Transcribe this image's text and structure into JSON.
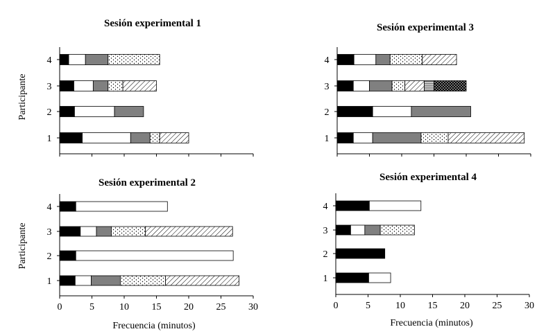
{
  "figure": {
    "ylabel": "Participante",
    "xlabel": "Frecuencia (minutos)"
  },
  "chart_data": [
    {
      "type": "bar",
      "orientation": "horizontal",
      "stacked": true,
      "title": "Sesión experimental 1",
      "ylabel": "Participante",
      "categories": [
        "1",
        "2",
        "3",
        "4"
      ],
      "xlim": [
        0,
        30
      ],
      "x_tick_labels": [],
      "stacks": [
        {
          "participant": "1",
          "segments": [
            {
              "value": 3.5,
              "pattern": "solid-black"
            },
            {
              "value": 7.5,
              "pattern": "white"
            },
            {
              "value": 3.0,
              "pattern": "gray"
            },
            {
              "value": 1.5,
              "pattern": "dots"
            },
            {
              "value": 4.5,
              "pattern": "diagonal"
            }
          ]
        },
        {
          "participant": "2",
          "segments": [
            {
              "value": 2.3,
              "pattern": "solid-black"
            },
            {
              "value": 6.2,
              "pattern": "white"
            },
            {
              "value": 4.5,
              "pattern": "gray"
            }
          ]
        },
        {
          "participant": "3",
          "segments": [
            {
              "value": 2.2,
              "pattern": "solid-black"
            },
            {
              "value": 3.0,
              "pattern": "white"
            },
            {
              "value": 2.3,
              "pattern": "gray"
            },
            {
              "value": 2.3,
              "pattern": "dots"
            },
            {
              "value": 5.2,
              "pattern": "diagonal"
            }
          ]
        },
        {
          "participant": "4",
          "segments": [
            {
              "value": 1.4,
              "pattern": "solid-black"
            },
            {
              "value": 2.6,
              "pattern": "white"
            },
            {
              "value": 3.5,
              "pattern": "gray"
            },
            {
              "value": 8.0,
              "pattern": "dots"
            }
          ]
        }
      ]
    },
    {
      "type": "bar",
      "orientation": "horizontal",
      "stacked": true,
      "title": "Sesión experimental 3",
      "categories": [
        "1",
        "2",
        "3",
        "4"
      ],
      "xlim": [
        0,
        30
      ],
      "x_tick_labels": [],
      "stacks": [
        {
          "participant": "1",
          "segments": [
            {
              "value": 2.5,
              "pattern": "solid-black"
            },
            {
              "value": 3.0,
              "pattern": "white"
            },
            {
              "value": 7.5,
              "pattern": "gray"
            },
            {
              "value": 4.2,
              "pattern": "dots"
            },
            {
              "value": 11.8,
              "pattern": "diagonal"
            }
          ]
        },
        {
          "participant": "2",
          "segments": [
            {
              "value": 5.5,
              "pattern": "solid-black"
            },
            {
              "value": 6.0,
              "pattern": "white"
            },
            {
              "value": 9.2,
              "pattern": "gray"
            }
          ]
        },
        {
          "participant": "3",
          "segments": [
            {
              "value": 2.5,
              "pattern": "solid-black"
            },
            {
              "value": 2.5,
              "pattern": "white"
            },
            {
              "value": 3.5,
              "pattern": "gray"
            },
            {
              "value": 2.0,
              "pattern": "dots"
            },
            {
              "value": 3.0,
              "pattern": "diagonal"
            },
            {
              "value": 1.5,
              "pattern": "horizontal-lines"
            },
            {
              "value": 5.0,
              "pattern": "dense-dots"
            }
          ]
        },
        {
          "participant": "4",
          "segments": [
            {
              "value": 2.6,
              "pattern": "solid-black"
            },
            {
              "value": 3.4,
              "pattern": "white"
            },
            {
              "value": 2.2,
              "pattern": "gray"
            },
            {
              "value": 5.0,
              "pattern": "dots"
            },
            {
              "value": 5.3,
              "pattern": "diagonal"
            }
          ]
        }
      ]
    },
    {
      "type": "bar",
      "orientation": "horizontal",
      "stacked": true,
      "title": "Sesión experimental 2",
      "ylabel": "Participante",
      "xlabel": "Frecuencia (minutos)",
      "categories": [
        "1",
        "2",
        "3",
        "4"
      ],
      "xlim": [
        0,
        30
      ],
      "x_ticks": [
        0,
        5,
        10,
        15,
        20,
        25,
        30
      ],
      "x_tick_labels": [
        "0",
        "5",
        "10",
        "15",
        "20",
        "25",
        "30"
      ],
      "stacks": [
        {
          "participant": "1",
          "segments": [
            {
              "value": 2.4,
              "pattern": "solid-black"
            },
            {
              "value": 2.5,
              "pattern": "white"
            },
            {
              "value": 4.5,
              "pattern": "gray"
            },
            {
              "value": 7.0,
              "pattern": "dots"
            },
            {
              "value": 11.4,
              "pattern": "diagonal"
            }
          ]
        },
        {
          "participant": "2",
          "segments": [
            {
              "value": 2.5,
              "pattern": "solid-black"
            },
            {
              "value": 24.4,
              "pattern": "white"
            }
          ]
        },
        {
          "participant": "3",
          "segments": [
            {
              "value": 3.2,
              "pattern": "solid-black"
            },
            {
              "value": 2.5,
              "pattern": "white"
            },
            {
              "value": 2.3,
              "pattern": "gray"
            },
            {
              "value": 5.3,
              "pattern": "dots"
            },
            {
              "value": 13.5,
              "pattern": "diagonal"
            }
          ]
        },
        {
          "participant": "4",
          "segments": [
            {
              "value": 2.5,
              "pattern": "solid-black"
            },
            {
              "value": 14.2,
              "pattern": "white"
            }
          ]
        }
      ]
    },
    {
      "type": "bar",
      "orientation": "horizontal",
      "stacked": true,
      "title": "Sesión experimental 4",
      "xlabel": "Frecuencia (minutos)",
      "categories": [
        "1",
        "2",
        "3",
        "4"
      ],
      "xlim": [
        0,
        30
      ],
      "x_ticks": [
        0,
        5,
        10,
        15,
        20,
        25,
        30
      ],
      "x_tick_labels": [
        "0",
        "5",
        "10",
        "15",
        "20",
        "25",
        "30"
      ],
      "stacks": [
        {
          "participant": "1",
          "segments": [
            {
              "value": 5.1,
              "pattern": "solid-black"
            },
            {
              "value": 3.4,
              "pattern": "white"
            }
          ]
        },
        {
          "participant": "2",
          "segments": [
            {
              "value": 7.6,
              "pattern": "solid-black"
            }
          ]
        },
        {
          "participant": "3",
          "segments": [
            {
              "value": 2.3,
              "pattern": "solid-black"
            },
            {
              "value": 2.2,
              "pattern": "white"
            },
            {
              "value": 2.4,
              "pattern": "gray"
            },
            {
              "value": 5.3,
              "pattern": "dots"
            }
          ]
        },
        {
          "participant": "4",
          "segments": [
            {
              "value": 5.2,
              "pattern": "solid-black"
            },
            {
              "value": 8.0,
              "pattern": "white"
            }
          ]
        }
      ]
    }
  ]
}
